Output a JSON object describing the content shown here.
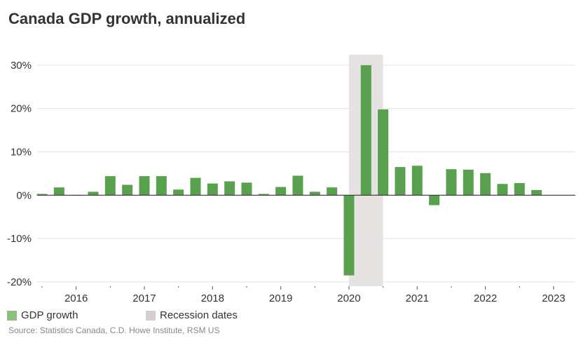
{
  "chart_data": {
    "type": "bar",
    "title": "Canada GDP growth, annualized",
    "source": "Source: Statistics Canada, C.D. Howe Institute, RSM US",
    "categories": [
      "2015 Q3",
      "2015 Q4",
      "2016 Q1",
      "2016 Q2",
      "2016 Q3",
      "2016 Q4",
      "2017 Q1",
      "2017 Q2",
      "2017 Q3",
      "2017 Q4",
      "2018 Q1",
      "2018 Q2",
      "2018 Q3",
      "2018 Q4",
      "2019 Q1",
      "2019 Q2",
      "2019 Q3",
      "2019 Q4",
      "2020 Q1",
      "2020 Q2",
      "2020 Q3",
      "2020 Q4",
      "2021 Q1",
      "2021 Q2",
      "2021 Q3",
      "2021 Q4",
      "2022 Q1",
      "2022 Q2",
      "2022 Q3",
      "2022 Q4"
    ],
    "series": [
      {
        "name": "GDP growth",
        "color": "#59a14f",
        "values": [
          0.3,
          1.8,
          -0.1,
          0.8,
          4.4,
          2.4,
          4.4,
          4.4,
          1.3,
          4.0,
          2.7,
          3.2,
          2.9,
          0.3,
          1.9,
          4.5,
          0.8,
          1.8,
          -18.5,
          30.0,
          19.8,
          6.5,
          6.8,
          -2.3,
          6.0,
          5.9,
          5.1,
          2.6,
          2.8,
          1.2
        ]
      }
    ],
    "recession": {
      "name": "Recession dates",
      "color": "#d5cfcf",
      "start": "2020 Q1",
      "end": "2020 Q3"
    },
    "ylim": [
      -20,
      30
    ],
    "yticks": [
      -20,
      -10,
      0,
      10,
      20,
      30
    ],
    "ytick_labels": [
      "-20%",
      "-10%",
      "0%",
      "10%",
      "20%",
      "30%"
    ],
    "xtick_labels": [
      "2016",
      "2017",
      "2018",
      "2019",
      "2020",
      "2021",
      "2022",
      "2023"
    ],
    "grid": true,
    "legend": "bottom-left",
    "legend_items": [
      "GDP growth",
      "Recession dates"
    ]
  }
}
